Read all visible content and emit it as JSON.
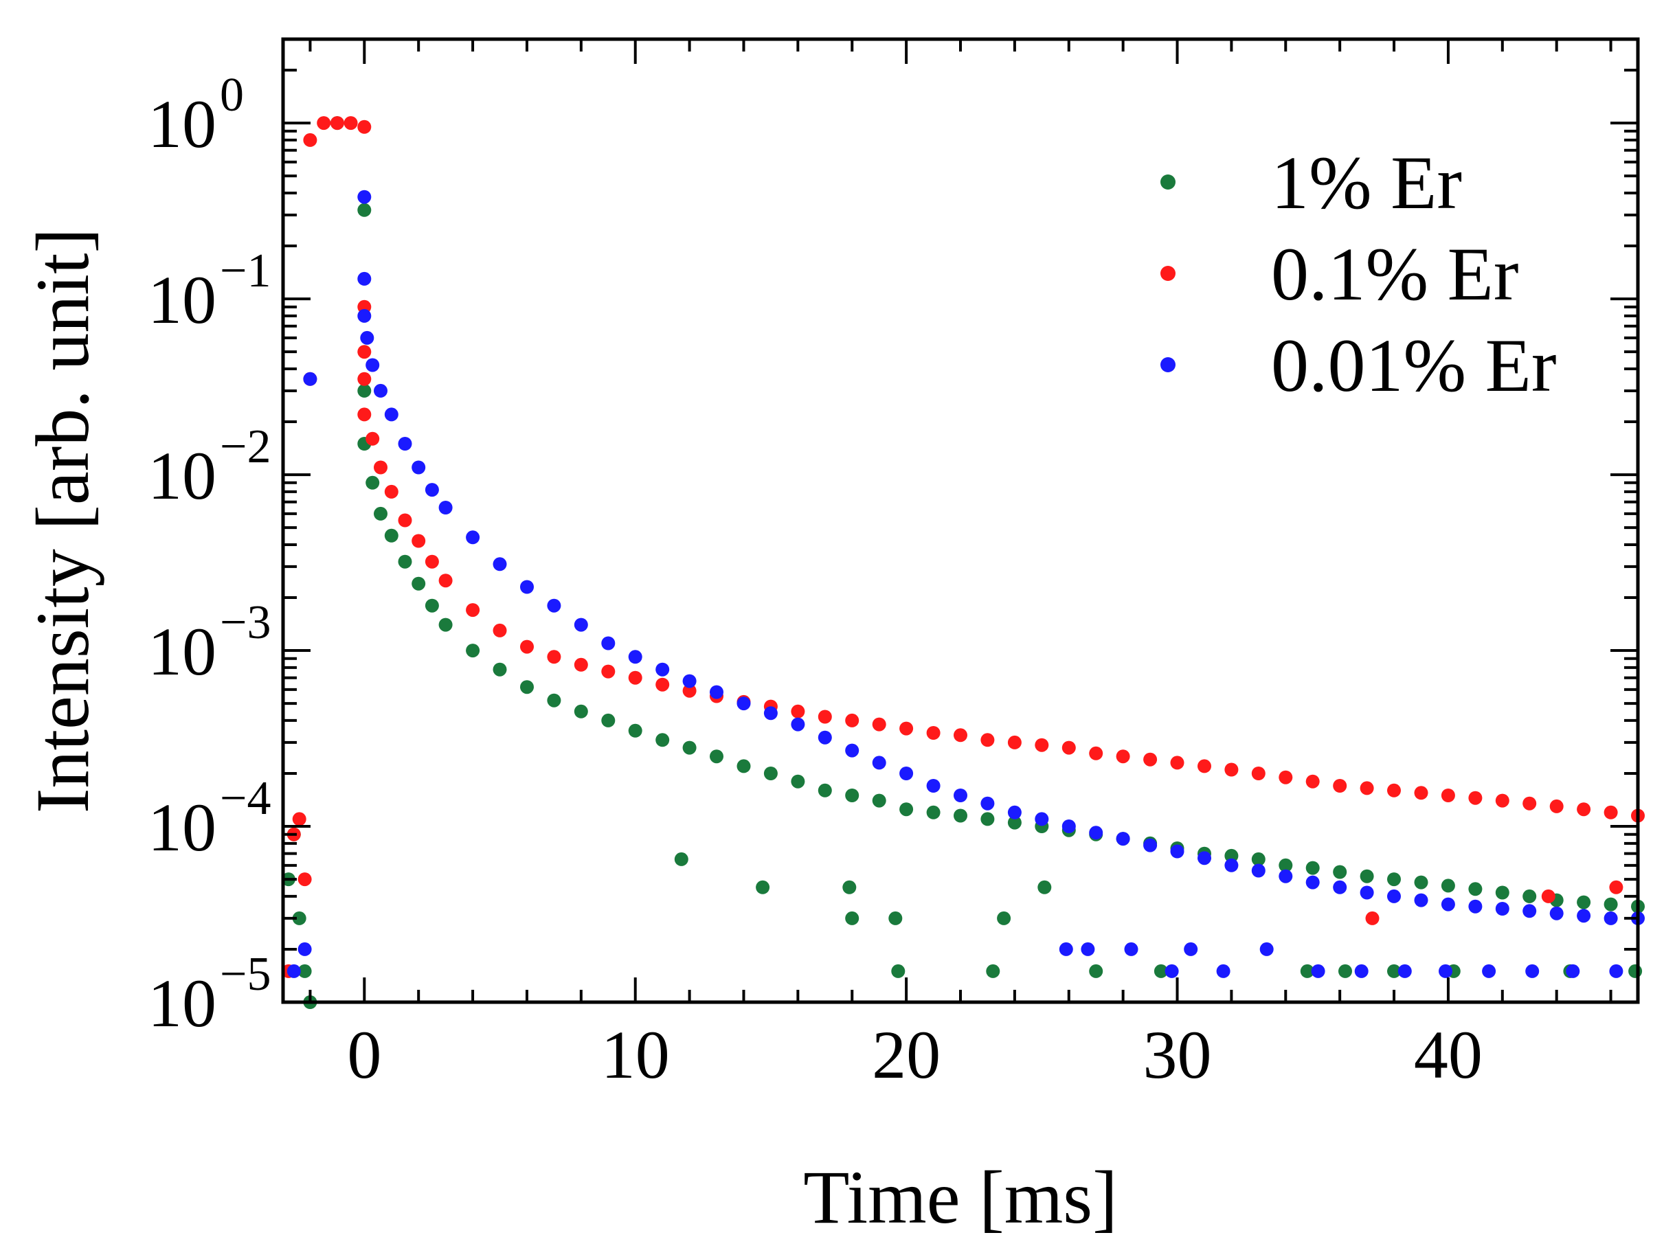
{
  "chart_data": {
    "type": "scatter",
    "title": "",
    "xlabel": "Time [ms]",
    "ylabel": "Intensity [arb. unit]",
    "xlim": [
      -3,
      47
    ],
    "ylim": [
      1e-05,
      3
    ],
    "yscale": "log",
    "x_ticks": [
      {
        "value": 0,
        "label": "0"
      },
      {
        "value": 10,
        "label": "10"
      },
      {
        "value": 20,
        "label": "20"
      },
      {
        "value": 30,
        "label": "30"
      },
      {
        "value": 40,
        "label": "40"
      }
    ],
    "y_ticks": [
      {
        "value": 1,
        "mantissa": "10",
        "exponent": "0"
      },
      {
        "value": 0.1,
        "mantissa": "10",
        "exponent": "−1"
      },
      {
        "value": 0.01,
        "mantissa": "10",
        "exponent": "−2"
      },
      {
        "value": 0.001,
        "mantissa": "10",
        "exponent": "−3"
      },
      {
        "value": 0.0001,
        "mantissa": "10",
        "exponent": "−4"
      },
      {
        "value": 1e-05,
        "mantissa": "10",
        "exponent": "−5"
      }
    ],
    "legend_position": "top-right",
    "series": [
      {
        "name": "1% Er",
        "color": "#1a7a3c",
        "x": [
          -2.8,
          -2.6,
          -2.4,
          -2.2,
          -2.0,
          -1.0,
          0.0,
          0.0,
          0.0,
          0.3,
          0.6,
          1,
          1.5,
          2,
          2.5,
          3,
          4,
          5,
          6,
          7,
          8,
          9,
          10,
          11,
          12,
          13,
          14,
          15,
          16,
          17,
          18,
          19,
          20,
          21,
          22,
          23,
          24,
          25,
          26,
          27,
          28,
          29,
          30,
          31,
          32,
          33,
          34,
          35,
          36,
          37,
          38,
          39,
          40,
          41,
          42,
          43,
          44,
          45,
          46,
          47,
          11.7,
          14.7,
          17.9,
          18.0,
          19.6,
          19.7,
          23.2,
          23.6,
          25.1,
          27.0,
          29.4,
          34.8,
          36.2,
          38.0,
          40.2,
          44.5,
          46.9
        ],
        "y": [
          5e-05,
          9e-05,
          3e-05,
          1.5e-05,
          1e-05,
          1.0,
          0.32,
          0.03,
          0.015,
          0.009,
          0.006,
          0.0045,
          0.0032,
          0.0024,
          0.0018,
          0.0014,
          0.001,
          0.00078,
          0.00062,
          0.00052,
          0.00045,
          0.0004,
          0.00035,
          0.00031,
          0.00028,
          0.00025,
          0.00022,
          0.0002,
          0.00018,
          0.00016,
          0.00015,
          0.00014,
          0.000125,
          0.00012,
          0.000115,
          0.00011,
          0.000105,
          0.0001,
          9.5e-05,
          9e-05,
          8.5e-05,
          8e-05,
          7.5e-05,
          7e-05,
          6.8e-05,
          6.5e-05,
          6e-05,
          5.8e-05,
          5.5e-05,
          5.2e-05,
          5e-05,
          4.8e-05,
          4.6e-05,
          4.4e-05,
          4.2e-05,
          4e-05,
          3.8e-05,
          3.7e-05,
          3.6e-05,
          3.5e-05,
          6.5e-05,
          4.5e-05,
          4.5e-05,
          3e-05,
          3e-05,
          1.5e-05,
          1.5e-05,
          3e-05,
          4.5e-05,
          1.5e-05,
          1.5e-05,
          1.5e-05,
          1.5e-05,
          1.5e-05,
          1.5e-05,
          1.5e-05,
          1.5e-05
        ]
      },
      {
        "name": "0.1% Er",
        "color": "#ff1a1a",
        "x": [
          -2.8,
          -2.6,
          -2.4,
          -2.2,
          -2.0,
          -2.0,
          -1.5,
          -1.0,
          -0.5,
          0.0,
          0.0,
          0.0,
          0.0,
          0.0,
          0.3,
          0.6,
          1,
          1.5,
          2,
          2.5,
          3,
          4,
          5,
          6,
          7,
          8,
          9,
          10,
          11,
          12,
          13,
          14,
          15,
          16,
          17,
          18,
          19,
          20,
          21,
          22,
          23,
          24,
          25,
          26,
          27,
          28,
          29,
          30,
          31,
          32,
          33,
          34,
          35,
          36,
          37,
          38,
          39,
          40,
          41,
          42,
          43,
          44,
          45,
          46,
          47,
          37.2,
          43.7,
          46.2
        ],
        "y": [
          1.5e-05,
          9e-05,
          0.00011,
          5e-05,
          0.035,
          0.8,
          1.0,
          1.0,
          1.0,
          0.95,
          0.09,
          0.05,
          0.035,
          0.022,
          0.016,
          0.011,
          0.008,
          0.0055,
          0.0042,
          0.0032,
          0.0025,
          0.0017,
          0.0013,
          0.00105,
          0.00092,
          0.00083,
          0.00076,
          0.0007,
          0.00064,
          0.00059,
          0.00055,
          0.00051,
          0.00048,
          0.00045,
          0.00042,
          0.0004,
          0.00038,
          0.00036,
          0.00034,
          0.00033,
          0.00031,
          0.0003,
          0.00029,
          0.00028,
          0.00026,
          0.00025,
          0.00024,
          0.00023,
          0.00022,
          0.00021,
          0.0002,
          0.00019,
          0.00018,
          0.00017,
          0.000165,
          0.00016,
          0.000155,
          0.00015,
          0.000145,
          0.00014,
          0.000135,
          0.00013,
          0.000125,
          0.00012,
          0.000115,
          3e-05,
          4e-05,
          4.5e-05
        ]
      },
      {
        "name": "0.01% Er",
        "color": "#1a1aff",
        "x": [
          -2.6,
          -2.2,
          -2.0,
          0.0,
          0.0,
          0.0,
          0.1,
          0.3,
          0.6,
          1,
          1.5,
          2,
          2.5,
          3,
          4,
          5,
          6,
          7,
          8,
          9,
          10,
          11,
          12,
          13,
          14,
          15,
          16,
          17,
          18,
          19,
          20,
          21,
          22,
          23,
          24,
          25,
          26,
          27,
          28,
          29,
          30,
          31,
          32,
          33,
          34,
          35,
          36,
          37,
          38,
          39,
          40,
          41,
          42,
          43,
          44,
          45,
          46,
          47,
          25.9,
          26.7,
          28.3,
          29.8,
          30.5,
          31.7,
          33.3,
          35.2,
          36.8,
          38.4,
          39.9,
          41.5,
          43.1,
          44.6,
          46.2
        ],
        "y": [
          1.5e-05,
          2e-05,
          0.035,
          0.38,
          0.13,
          0.08,
          0.06,
          0.042,
          0.03,
          0.022,
          0.015,
          0.011,
          0.0082,
          0.0065,
          0.0044,
          0.0031,
          0.0023,
          0.0018,
          0.0014,
          0.0011,
          0.00092,
          0.00078,
          0.00067,
          0.00058,
          0.0005,
          0.00044,
          0.00038,
          0.00032,
          0.00027,
          0.00023,
          0.0002,
          0.00017,
          0.00015,
          0.000135,
          0.00012,
          0.00011,
          0.0001,
          9.2e-05,
          8.5e-05,
          7.8e-05,
          7.2e-05,
          6.6e-05,
          6e-05,
          5.6e-05,
          5.2e-05,
          4.8e-05,
          4.5e-05,
          4.2e-05,
          4e-05,
          3.8e-05,
          3.6e-05,
          3.5e-05,
          3.4e-05,
          3.3e-05,
          3.2e-05,
          3.1e-05,
          3e-05,
          3e-05,
          2e-05,
          2e-05,
          2e-05,
          1.5e-05,
          2e-05,
          1.5e-05,
          2e-05,
          1.5e-05,
          1.5e-05,
          1.5e-05,
          1.5e-05,
          1.5e-05,
          1.5e-05,
          1.5e-05,
          1.5e-05
        ]
      }
    ]
  }
}
